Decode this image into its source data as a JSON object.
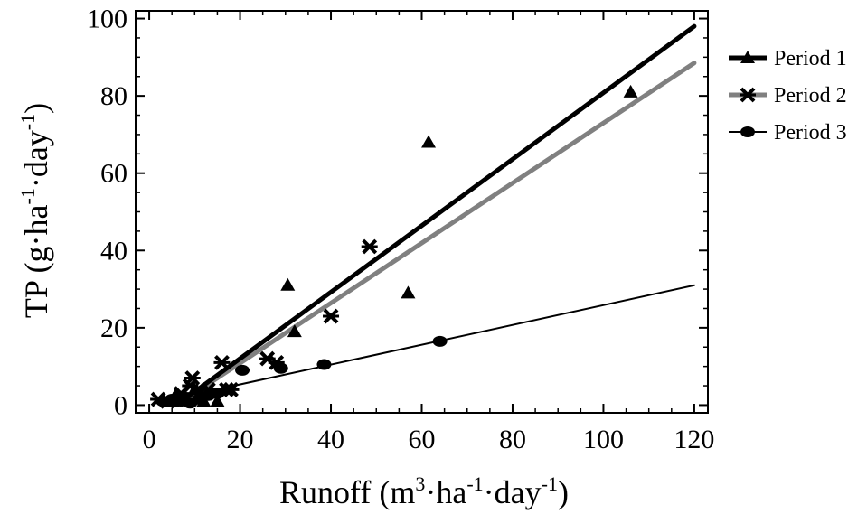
{
  "chart_data": {
    "type": "scatter",
    "xlabel": {
      "main": "Runoff (m",
      "sup1": "3",
      "mid1": "·ha",
      "sup2": "-1",
      "mid2": "·day",
      "sup3": "-1",
      "end": ")"
    },
    "ylabel": {
      "main": "TP (g·ha",
      "sup1": "-1",
      "mid1": "·day",
      "sup2": "-1",
      "end": ")"
    },
    "xlim": [
      -3,
      123
    ],
    "ylim": [
      -2,
      102
    ],
    "xticks": [
      0,
      20,
      40,
      60,
      80,
      100,
      120
    ],
    "yticks": [
      0,
      20,
      40,
      60,
      80,
      100
    ],
    "x_minor_step": 5,
    "y_minor_step": 5,
    "grid": false,
    "legend_position": "right",
    "series": [
      {
        "name": "Period 1",
        "marker": "triangle",
        "line_color": "#000000",
        "line_width": 5,
        "fit": {
          "x": [
            6,
            120
          ],
          "y": [
            0,
            98
          ]
        },
        "points": [
          [
            5,
            1
          ],
          [
            6,
            3
          ],
          [
            8,
            2
          ],
          [
            10,
            4
          ],
          [
            12,
            1
          ],
          [
            15,
            1
          ],
          [
            30.5,
            31
          ],
          [
            32,
            19
          ],
          [
            57,
            29
          ],
          [
            61.5,
            68
          ],
          [
            106,
            81
          ]
        ]
      },
      {
        "name": "Period 2",
        "marker": "asterisk",
        "line_color": "#808080",
        "line_width": 5,
        "fit": {
          "x": [
            6,
            120
          ],
          "y": [
            0,
            88.5
          ]
        },
        "points": [
          [
            2,
            1.5
          ],
          [
            4,
            1
          ],
          [
            7,
            3
          ],
          [
            9,
            5
          ],
          [
            9.5,
            7
          ],
          [
            11,
            3
          ],
          [
            13,
            4
          ],
          [
            16,
            11
          ],
          [
            17,
            4
          ],
          [
            18,
            4
          ],
          [
            26,
            12
          ],
          [
            28,
            11
          ],
          [
            40,
            23
          ],
          [
            48.5,
            41
          ]
        ]
      },
      {
        "name": "Period 3",
        "marker": "circle",
        "line_color": "#000000",
        "line_width": 2,
        "fit": {
          "x": [
            5,
            120
          ],
          "y": [
            1.5,
            31
          ]
        },
        "points": [
          [
            3,
            1
          ],
          [
            5,
            1.5
          ],
          [
            7,
            1
          ],
          [
            9,
            0.5
          ],
          [
            11,
            1.5
          ],
          [
            13,
            2.5
          ],
          [
            15,
            3
          ],
          [
            20.5,
            9
          ],
          [
            29,
            9.5
          ],
          [
            38.5,
            10.5
          ],
          [
            64,
            16.5
          ]
        ]
      }
    ]
  }
}
